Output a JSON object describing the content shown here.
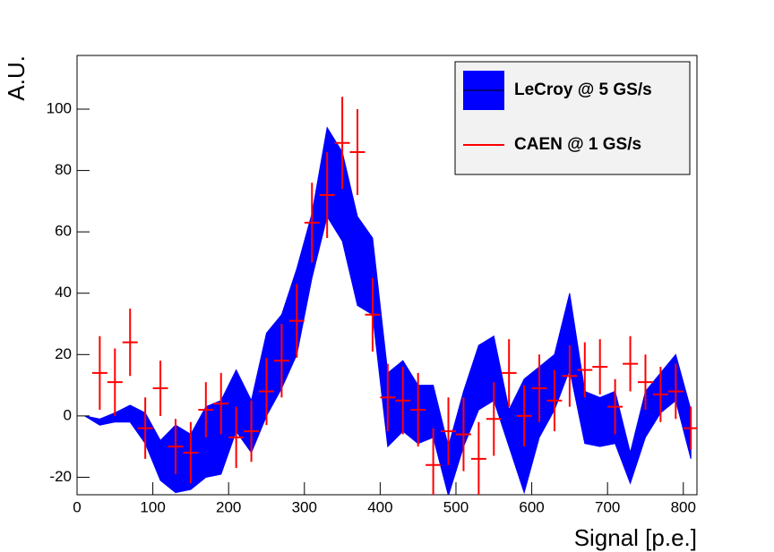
{
  "chart_data": {
    "type": "band_errorbar",
    "xlabel": "Signal [p.e.]",
    "ylabel": "A.U.",
    "xlim": [
      0,
      818
    ],
    "ylim": [
      -25.7,
      117.5
    ],
    "xticks": [
      0,
      100,
      200,
      300,
      400,
      500,
      600,
      700,
      800
    ],
    "yticks": [
      -20,
      0,
      20,
      40,
      60,
      80,
      100
    ],
    "legend": "upper right",
    "series": [
      {
        "name": "LeCroy @ 5 GS/s",
        "type": "band",
        "color": "#0000ff",
        "x": [
          10,
          30,
          50,
          70,
          90,
          110,
          130,
          150,
          170,
          190,
          210,
          230,
          250,
          270,
          290,
          310,
          330,
          350,
          370,
          390,
          410,
          430,
          450,
          470,
          490,
          510,
          530,
          550,
          570,
          590,
          610,
          630,
          650,
          670,
          690,
          710,
          730,
          750,
          770,
          790,
          810
        ],
        "upper": [
          0,
          -1,
          1,
          3.5,
          1,
          -8,
          -3,
          -6,
          3,
          5,
          15,
          5,
          27,
          33,
          48,
          66,
          94,
          86,
          65,
          58,
          14,
          18,
          10,
          10,
          -10,
          8,
          23,
          26,
          2,
          12,
          16,
          20,
          40,
          8,
          6,
          8,
          -12,
          8,
          14,
          20,
          2
        ],
        "lower": [
          0,
          -3,
          -2,
          -2,
          -9,
          -21,
          -25,
          -24,
          -20,
          -19,
          -5,
          -12,
          0,
          9,
          20,
          45,
          65,
          57,
          36,
          33,
          -10,
          -5,
          -9,
          -7,
          -26,
          -10,
          2,
          5,
          -10,
          -25,
          -7,
          2,
          15,
          -9,
          -10,
          -9,
          -22,
          -7,
          1,
          5,
          -14
        ]
      },
      {
        "name": "CAEN @ 1 GS/s",
        "type": "errorbar",
        "color": "#ff0000",
        "xerr": 10,
        "x": [
          30,
          50,
          70,
          90,
          110,
          130,
          150,
          170,
          190,
          210,
          230,
          250,
          270,
          290,
          310,
          330,
          350,
          370,
          390,
          410,
          430,
          450,
          470,
          490,
          510,
          530,
          550,
          570,
          590,
          610,
          630,
          650,
          670,
          690,
          710,
          730,
          750,
          770,
          790,
          810
        ],
        "values": [
          14,
          11,
          24,
          -4,
          9,
          -10,
          -12,
          2,
          4,
          -7,
          -5,
          8,
          18,
          31,
          63,
          72,
          89,
          86,
          33,
          6,
          5,
          2,
          -16,
          -5,
          -6,
          -14,
          -1,
          14,
          0,
          9,
          5,
          13,
          15,
          16,
          3,
          17,
          11,
          7,
          8,
          -4
        ],
        "errors": [
          12,
          11,
          11,
          10,
          9,
          9,
          10,
          9,
          10,
          10,
          10,
          11,
          12,
          12,
          13,
          14,
          15,
          14,
          12,
          11,
          11,
          12,
          12,
          11,
          12,
          12,
          12,
          11,
          10,
          11,
          10,
          10,
          9,
          9,
          9,
          9,
          9,
          9,
          9,
          7
        ]
      }
    ]
  }
}
